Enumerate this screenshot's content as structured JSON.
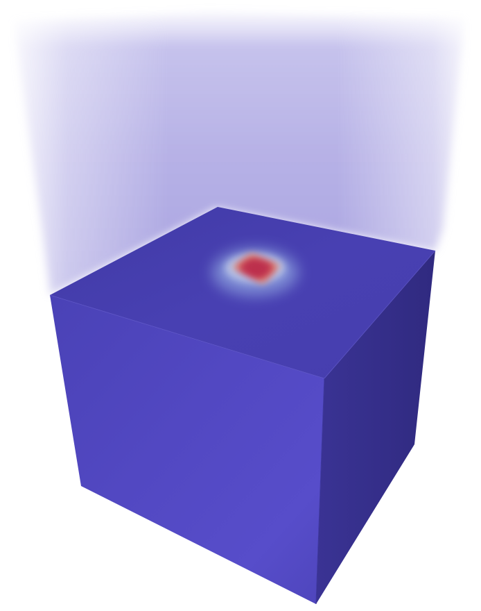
{
  "scene": {
    "colors": {
      "background": "#ffffff",
      "haze": "#9d97dd",
      "top_face_dark": "#3f37a0",
      "top_face_light": "#4a42b4",
      "front_face_dark": "#4c44b8",
      "front_face_light": "#5a50cc",
      "side_face_dark": "#2f2a7c",
      "side_face_light": "#3c3598",
      "hotspot_core": "#c0304a",
      "hotspot_edge": "#e08070",
      "hotspot_glow": "#9fc3ee"
    }
  }
}
